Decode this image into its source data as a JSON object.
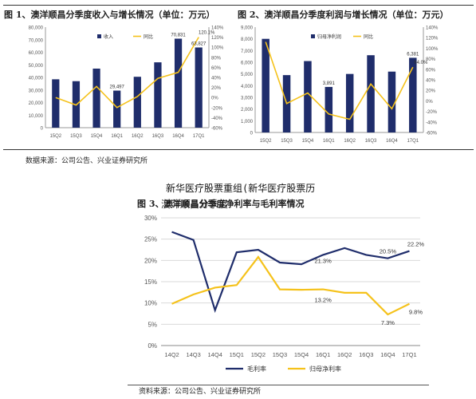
{
  "figures": {
    "fig1_title": "图 1、澳洋顺昌分季度收入与增长情况（单位：万元）",
    "fig2_title": "图 2、澳洋顺昌分季度利润与增长情况（单位：万元）",
    "fig3_title": "图 3、澳洋顺昌分季度净利率与毛利率情况",
    "source_top": "数据来源：公司公告、兴业证券研究所",
    "source_bottom": "资料来源：公司公告、兴业证券研究所",
    "watermark_line1": "新华医疗股票重组(新华医疗股票历",
    "watermark_line2": "澳洋顺昌分季度"
  },
  "colors": {
    "bar": "#1f2d6b",
    "line_yellow": "#f5c21b",
    "navy_line": "#1f2d6b",
    "grid": "#d9d9d9",
    "axis_text": "#555555"
  },
  "chart_data": [
    {
      "type": "bar",
      "categories": [
        "15Q2",
        "15Q3",
        "15Q4",
        "16Q1",
        "16Q2",
        "16Q3",
        "16Q4",
        "17Q1"
      ],
      "series": [
        {
          "name": "收入",
          "axis": "left",
          "kind": "bar",
          "values": [
            38500,
            37000,
            47000,
            29497,
            40500,
            52000,
            70831,
            63827
          ]
        },
        {
          "name": "同比",
          "axis": "right",
          "kind": "line",
          "unit": "%",
          "values": [
            0,
            -15,
            22,
            -20,
            2,
            38,
            50,
            120
          ]
        }
      ],
      "data_labels": [
        {
          "index": 3,
          "text": "29,497"
        },
        {
          "index": 6,
          "text": "70,831"
        },
        {
          "index": 7,
          "text": "63,827"
        },
        {
          "index": 7,
          "series": 1,
          "text": "120.1%"
        }
      ],
      "ylim": [
        0,
        80000
      ],
      "yticks": [
        "0",
        "10,000",
        "20,000",
        "30,000",
        "40,000",
        "50,000",
        "60,000",
        "70,000",
        "80,000"
      ],
      "y2lim": [
        -60,
        140
      ],
      "y2ticks": [
        "-60%",
        "-40%",
        "-20%",
        "0%",
        "20%",
        "40%",
        "60%",
        "80%",
        "100%",
        "120%",
        "140%"
      ],
      "legend_position": "top"
    },
    {
      "type": "bar",
      "categories": [
        "15Q2",
        "15Q3",
        "15Q4",
        "16Q1",
        "16Q2",
        "16Q3",
        "16Q4",
        "17Q1"
      ],
      "series": [
        {
          "name": "归母净利润",
          "axis": "left",
          "kind": "bar",
          "values": [
            8000,
            4900,
            6100,
            3891,
            5000,
            6600,
            5200,
            6381
          ]
        },
        {
          "name": "同比",
          "axis": "right",
          "kind": "line",
          "unit": "%",
          "values": [
            112,
            -5,
            15,
            -25,
            -35,
            32,
            -15,
            64
          ]
        }
      ],
      "data_labels": [
        {
          "index": 3,
          "text": "3,891"
        },
        {
          "index": 7,
          "text": "6,381"
        },
        {
          "index": 7,
          "series": 1,
          "text": "64.0%"
        }
      ],
      "ylim": [
        0,
        9000
      ],
      "yticks": [
        "0",
        "1,000",
        "2,000",
        "3,000",
        "4,000",
        "5,000",
        "6,000",
        "7,000",
        "8,000",
        "9,000"
      ],
      "y2lim": [
        -60,
        140
      ],
      "y2ticks": [
        "-60%",
        "-40%",
        "-20%",
        "0%",
        "20%",
        "40%",
        "60%",
        "80%",
        "100%",
        "120%",
        "140%"
      ],
      "legend_position": "top"
    },
    {
      "type": "line",
      "categories": [
        "14Q2",
        "14Q3",
        "14Q4",
        "15Q1",
        "15Q2",
        "15Q3",
        "15Q4",
        "16Q1",
        "16Q2",
        "16Q3",
        "16Q4",
        "17Q1"
      ],
      "series": [
        {
          "name": "毛利率",
          "values": [
            26.7,
            24.8,
            8.3,
            21.9,
            22.5,
            19.5,
            19.1,
            21.3,
            22.9,
            21.3,
            20.5,
            22.2
          ]
        },
        {
          "name": "归母净利率",
          "values": [
            9.8,
            12.0,
            13.6,
            14.2,
            20.8,
            13.2,
            13.1,
            13.2,
            12.4,
            12.4,
            7.3,
            9.8
          ]
        }
      ],
      "data_labels": [
        {
          "series": 0,
          "index": 7,
          "text": "21.3%"
        },
        {
          "series": 0,
          "index": 10,
          "text": "20.5%"
        },
        {
          "series": 0,
          "index": 11,
          "text": "22.2%"
        },
        {
          "series": 1,
          "index": 7,
          "text": "13.2%"
        },
        {
          "series": 1,
          "index": 10,
          "text": "7.3%"
        },
        {
          "series": 1,
          "index": 11,
          "text": "9.8%"
        }
      ],
      "ylim": [
        0,
        30
      ],
      "yticks": [
        "0%",
        "5%",
        "10%",
        "15%",
        "20%",
        "25%",
        "30%"
      ],
      "legend_position": "bottom"
    }
  ]
}
